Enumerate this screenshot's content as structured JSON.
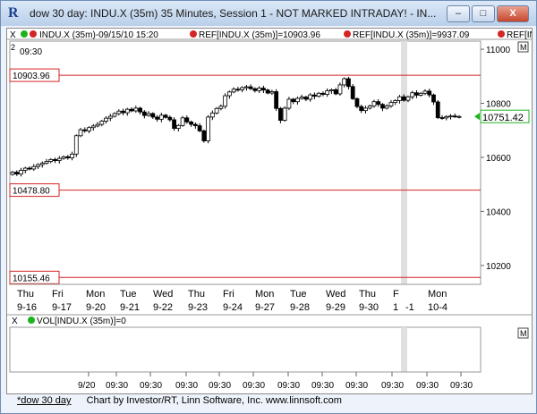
{
  "window": {
    "title": "dow 30 day: INDU.X (35m) 35 Minutes, Session 1 - NOT MARKED INTRADAY! - IN...",
    "app_icon": "investor-rt-icon",
    "min_label": "–",
    "max_label": "□",
    "close_label": "X"
  },
  "legend": {
    "close_x": "X",
    "entry_main": "INDU.X (35m)-09/15/10 15:20",
    "entry_ref1": "REF[INDU.X (35m)]=10903.96",
    "entry_ref2": "REF[INDU.X (35m)]=9937.09",
    "entry_ref3": "REF[IN",
    "pane_number": "2",
    "time_label": "09:30",
    "m_button": "M",
    "vol_label": "VOL[INDU.X (35m)]=0",
    "vol_x": "X",
    "vol_m": "M",
    "colors": {
      "green": "#1db31d",
      "red": "#d42424"
    }
  },
  "chart_data": {
    "type": "candlestick",
    "y_ticks": [
      10200,
      10400,
      10600,
      10800,
      11000
    ],
    "y_tick_labels": [
      "10200",
      "10400",
      "10600",
      "10800",
      "11000"
    ],
    "ylim": [
      10130,
      11030
    ],
    "last_price": "10751.42",
    "last_price_value": 10751.42,
    "reference_lines": [
      {
        "label": "10903.96",
        "value": 10903.96
      },
      {
        "label": "10478.80",
        "value": 10478.8
      },
      {
        "label": "10155.46",
        "value": 10155.46
      }
    ],
    "day_labels": [
      {
        "dow": "Thu",
        "date": "9-16"
      },
      {
        "dow": "Fri",
        "date": "9-17"
      },
      {
        "dow": "Mon",
        "date": "9-20"
      },
      {
        "dow": "Tue",
        "date": "9-21"
      },
      {
        "dow": "Wed",
        "date": "9-22"
      },
      {
        "dow": "Thu",
        "date": "9-23"
      },
      {
        "dow": "Fri",
        "date": "9-24"
      },
      {
        "dow": "Mon",
        "date": "9-27"
      },
      {
        "dow": "Tue",
        "date": "9-28"
      },
      {
        "dow": "Wed",
        "date": "9-29"
      },
      {
        "dow": "Thu",
        "date": "9-30"
      },
      {
        "dow": "F",
        "date": "1"
      },
      {
        "dow": "",
        "date": "-1"
      },
      {
        "dow": "Mon",
        "date": "10-4"
      }
    ],
    "time_axis_labels": [
      "9/20",
      "09:30",
      "09:30",
      "09:30",
      "09:30",
      "09:30",
      "09:30",
      "09:30",
      "09:30",
      "09:30",
      "09:30",
      "09:30"
    ],
    "closes": [
      10545,
      10538,
      10552,
      10560,
      10557,
      10566,
      10573,
      10578,
      10585,
      10592,
      10588,
      10596,
      10602,
      10598,
      10612,
      10680,
      10702,
      10698,
      10710,
      10716,
      10722,
      10734,
      10745,
      10752,
      10762,
      10771,
      10765,
      10778,
      10772,
      10782,
      10768,
      10755,
      10762,
      10749,
      10741,
      10756,
      10748,
      10739,
      10707,
      10718,
      10746,
      10731,
      10722,
      10717,
      10698,
      10661,
      10749,
      10764,
      10781,
      10789,
      10828,
      10842,
      10852,
      10850,
      10858,
      10861,
      10854,
      10847,
      10856,
      10849,
      10838,
      10843,
      10781,
      10737,
      10782,
      10815,
      10806,
      10818,
      10823,
      10815,
      10831,
      10826,
      10837,
      10833,
      10846,
      10850,
      10835,
      10868,
      10891,
      10862,
      10817,
      10788,
      10773,
      10782,
      10790,
      10806,
      10796,
      10782,
      10790,
      10803,
      10810,
      10824,
      10811,
      10824,
      10839,
      10830,
      10837,
      10845,
      10831,
      10805,
      10747,
      10746,
      10751,
      10753,
      10751,
      10751
    ]
  },
  "footer": {
    "tab": "*dow 30 day",
    "credit": "Chart by Investor/RT, Linn Software, Inc. www.linnsoft.com"
  }
}
